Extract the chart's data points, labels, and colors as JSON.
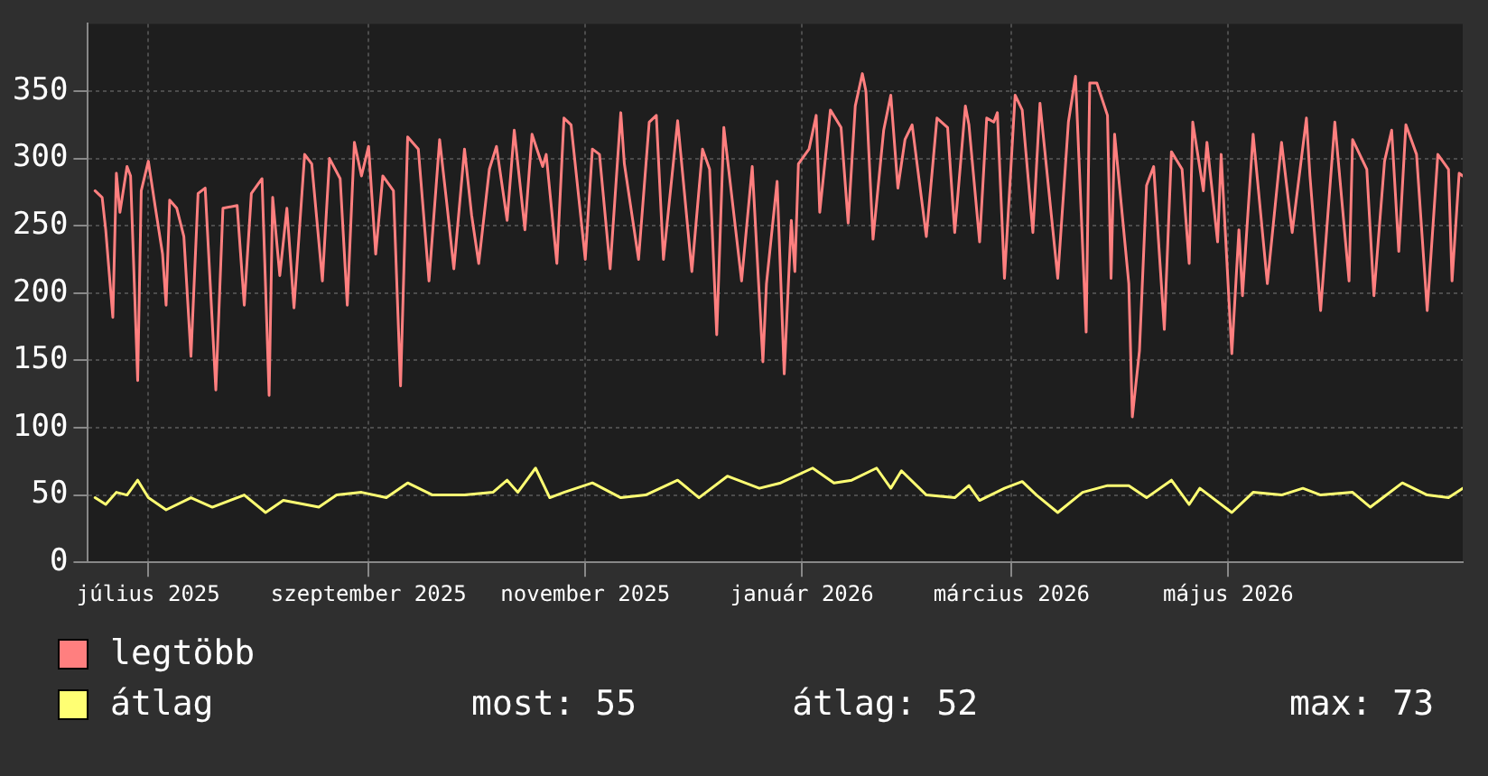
{
  "chart_data": {
    "type": "line",
    "xlim": [
      "2025-06-14",
      "2026-07-06"
    ],
    "xticks": [
      {
        "value": "2025-07-01",
        "label": "július 2025"
      },
      {
        "value": "2025-09-01",
        "label": "szeptember 2025"
      },
      {
        "value": "2025-11-01",
        "label": "november 2025"
      },
      {
        "value": "2026-01-01",
        "label": "január 2026"
      },
      {
        "value": "2026-03-01",
        "label": "március 2026"
      },
      {
        "value": "2026-05-01",
        "label": "május 2026"
      }
    ],
    "ylim": [
      0,
      400
    ],
    "yticks": [
      0,
      50,
      100,
      150,
      200,
      250,
      300,
      350
    ],
    "grid": true,
    "legend": "bottom left",
    "marker": "none",
    "annotations": [
      "most: 55",
      "átlag: 52",
      "max: 73"
    ],
    "series": [
      {
        "name": "legtöbb",
        "color": "#ff7f7f",
        "x": [
          "2025-06-16",
          "2025-06-18",
          "2025-06-19",
          "2025-06-21",
          "2025-06-22",
          "2025-06-23",
          "2025-06-25",
          "2025-06-26",
          "2025-06-28",
          "2025-06-29",
          "2025-07-01",
          "2025-07-03",
          "2025-07-05",
          "2025-07-06",
          "2025-07-07",
          "2025-07-09",
          "2025-07-11",
          "2025-07-13",
          "2025-07-15",
          "2025-07-17",
          "2025-07-20",
          "2025-07-22",
          "2025-07-26",
          "2025-07-28",
          "2025-07-30",
          "2025-08-02",
          "2025-08-04",
          "2025-08-05",
          "2025-08-07",
          "2025-08-09",
          "2025-08-11",
          "2025-08-14",
          "2025-08-16",
          "2025-08-19",
          "2025-08-21",
          "2025-08-24",
          "2025-08-26",
          "2025-08-28",
          "2025-08-30",
          "2025-09-01",
          "2025-09-03",
          "2025-09-05",
          "2025-09-08",
          "2025-09-10",
          "2025-09-12",
          "2025-09-15",
          "2025-09-18",
          "2025-09-21",
          "2025-09-23",
          "2025-09-25",
          "2025-09-28",
          "2025-09-30",
          "2025-10-02",
          "2025-10-05",
          "2025-10-07",
          "2025-10-10",
          "2025-10-12",
          "2025-10-15",
          "2025-10-17",
          "2025-10-20",
          "2025-10-21",
          "2025-10-24",
          "2025-10-26",
          "2025-10-28",
          "2025-11-01",
          "2025-11-03",
          "2025-11-05",
          "2025-11-08",
          "2025-11-11",
          "2025-11-12",
          "2025-11-16",
          "2025-11-19",
          "2025-11-21",
          "2025-11-23",
          "2025-11-27",
          "2025-12-01",
          "2025-12-04",
          "2025-12-06",
          "2025-12-08",
          "2025-12-10",
          "2025-12-15",
          "2025-12-18",
          "2025-12-21",
          "2025-12-22",
          "2025-12-25",
          "2025-12-27",
          "2025-12-29",
          "2025-12-30",
          "2025-12-31",
          "2026-01-03",
          "2026-01-05",
          "2026-01-06",
          "2026-01-09",
          "2026-01-12",
          "2026-01-14",
          "2026-01-16",
          "2026-01-18",
          "2026-01-19",
          "2026-01-21",
          "2026-01-24",
          "2026-01-26",
          "2026-01-28",
          "2026-01-30",
          "2026-02-01",
          "2026-02-05",
          "2026-02-08",
          "2026-02-11",
          "2026-02-13",
          "2026-02-16",
          "2026-02-17",
          "2026-02-20",
          "2026-02-22",
          "2026-02-24",
          "2026-02-25",
          "2026-02-27",
          "2026-03-02",
          "2026-03-04",
          "2026-03-07",
          "2026-03-09",
          "2026-03-14",
          "2026-03-17",
          "2026-03-19",
          "2026-03-22",
          "2026-03-23",
          "2026-03-25",
          "2026-03-28",
          "2026-03-29",
          "2026-03-30",
          "2026-04-03",
          "2026-04-04",
          "2026-04-06",
          "2026-04-08",
          "2026-04-10",
          "2026-04-13",
          "2026-04-15",
          "2026-04-18",
          "2026-04-20",
          "2026-04-21",
          "2026-04-24",
          "2026-04-25",
          "2026-04-28",
          "2026-04-29",
          "2026-05-02",
          "2026-05-04",
          "2026-05-05",
          "2026-05-08",
          "2026-05-12",
          "2026-05-16",
          "2026-05-19",
          "2026-05-23",
          "2026-05-24",
          "2026-05-27",
          "2026-05-31",
          "2026-06-04",
          "2026-06-05",
          "2026-06-09",
          "2026-06-11",
          "2026-06-14",
          "2026-06-16",
          "2026-06-18",
          "2026-06-20",
          "2026-06-23",
          "2026-06-26",
          "2026-06-29",
          "2026-07-02",
          "2026-07-03",
          "2026-07-05",
          "2026-07-06"
        ],
        "values": [
          276,
          271,
          247,
          182,
          289,
          260,
          294,
          287,
          135,
          276,
          298,
          263,
          229,
          191,
          269,
          263,
          242,
          153,
          274,
          278,
          128,
          263,
          265,
          191,
          274,
          285,
          124,
          271,
          213,
          263,
          189,
          303,
          296,
          209,
          300,
          285,
          191,
          312,
          287,
          309,
          229,
          287,
          276,
          131,
          316,
          307,
          209,
          314,
          267,
          218,
          307,
          258,
          222,
          292,
          309,
          254,
          321,
          247,
          318,
          294,
          303,
          222,
          330,
          325,
          225,
          307,
          303,
          218,
          334,
          296,
          225,
          327,
          332,
          225,
          328,
          216,
          307,
          292,
          169,
          323,
          209,
          294,
          149,
          207,
          283,
          140,
          254,
          216,
          296,
          307,
          332,
          260,
          336,
          323,
          252,
          339,
          363,
          350,
          240,
          321,
          347,
          278,
          314,
          325,
          242,
          330,
          323,
          245,
          339,
          325,
          238,
          330,
          327,
          334,
          211,
          347,
          336,
          245,
          341,
          211,
          327,
          361,
          171,
          356,
          356,
          332,
          211,
          318,
          207,
          108,
          157,
          280,
          294,
          173,
          305,
          292,
          222,
          327,
          276,
          312,
          238,
          303,
          155,
          247,
          198,
          318,
          207,
          312,
          245,
          330,
          287,
          187,
          327,
          209,
          314,
          292,
          198,
          298,
          321,
          231,
          325,
          303,
          187,
          303,
          292,
          209,
          289,
          287
        ]
      },
      {
        "name": "átlag",
        "color": "#ffff73",
        "x": [
          "2025-06-16",
          "2025-06-19",
          "2025-06-22",
          "2025-06-25",
          "2025-06-28",
          "2025-07-01",
          "2025-07-06",
          "2025-07-13",
          "2025-07-19",
          "2025-07-28",
          "2025-08-03",
          "2025-08-08",
          "2025-08-18",
          "2025-08-23",
          "2025-08-30",
          "2025-09-06",
          "2025-09-12",
          "2025-09-19",
          "2025-09-28",
          "2025-10-06",
          "2025-10-10",
          "2025-10-13",
          "2025-10-18",
          "2025-10-22",
          "2025-10-26",
          "2025-11-03",
          "2025-11-11",
          "2025-11-18",
          "2025-11-27",
          "2025-12-03",
          "2025-12-11",
          "2025-12-20",
          "2025-12-26",
          "2026-01-04",
          "2026-01-10",
          "2026-01-15",
          "2026-01-22",
          "2026-01-26",
          "2026-01-29",
          "2026-02-05",
          "2026-02-13",
          "2026-02-17",
          "2026-02-20",
          "2026-02-27",
          "2026-03-04",
          "2026-03-08",
          "2026-03-14",
          "2026-03-21",
          "2026-03-28",
          "2026-04-03",
          "2026-04-08",
          "2026-04-15",
          "2026-04-20",
          "2026-04-23",
          "2026-05-02",
          "2026-05-08",
          "2026-05-16",
          "2026-05-22",
          "2026-05-27",
          "2026-06-05",
          "2026-06-10",
          "2026-06-19",
          "2026-06-26",
          "2026-07-02",
          "2026-07-06"
        ],
        "values": [
          48,
          43,
          52,
          50,
          61,
          48,
          39,
          48,
          41,
          50,
          37,
          46,
          41,
          50,
          52,
          48,
          59,
          50,
          50,
          52,
          61,
          52,
          70,
          48,
          52,
          59,
          48,
          50,
          61,
          48,
          64,
          55,
          59,
          70,
          59,
          61,
          70,
          55,
          68,
          50,
          48,
          57,
          46,
          55,
          60,
          50,
          37,
          52,
          57,
          57,
          48,
          61,
          43,
          55,
          37,
          52,
          50,
          55,
          50,
          52,
          41,
          59,
          50,
          48,
          55
        ]
      }
    ]
  }
}
